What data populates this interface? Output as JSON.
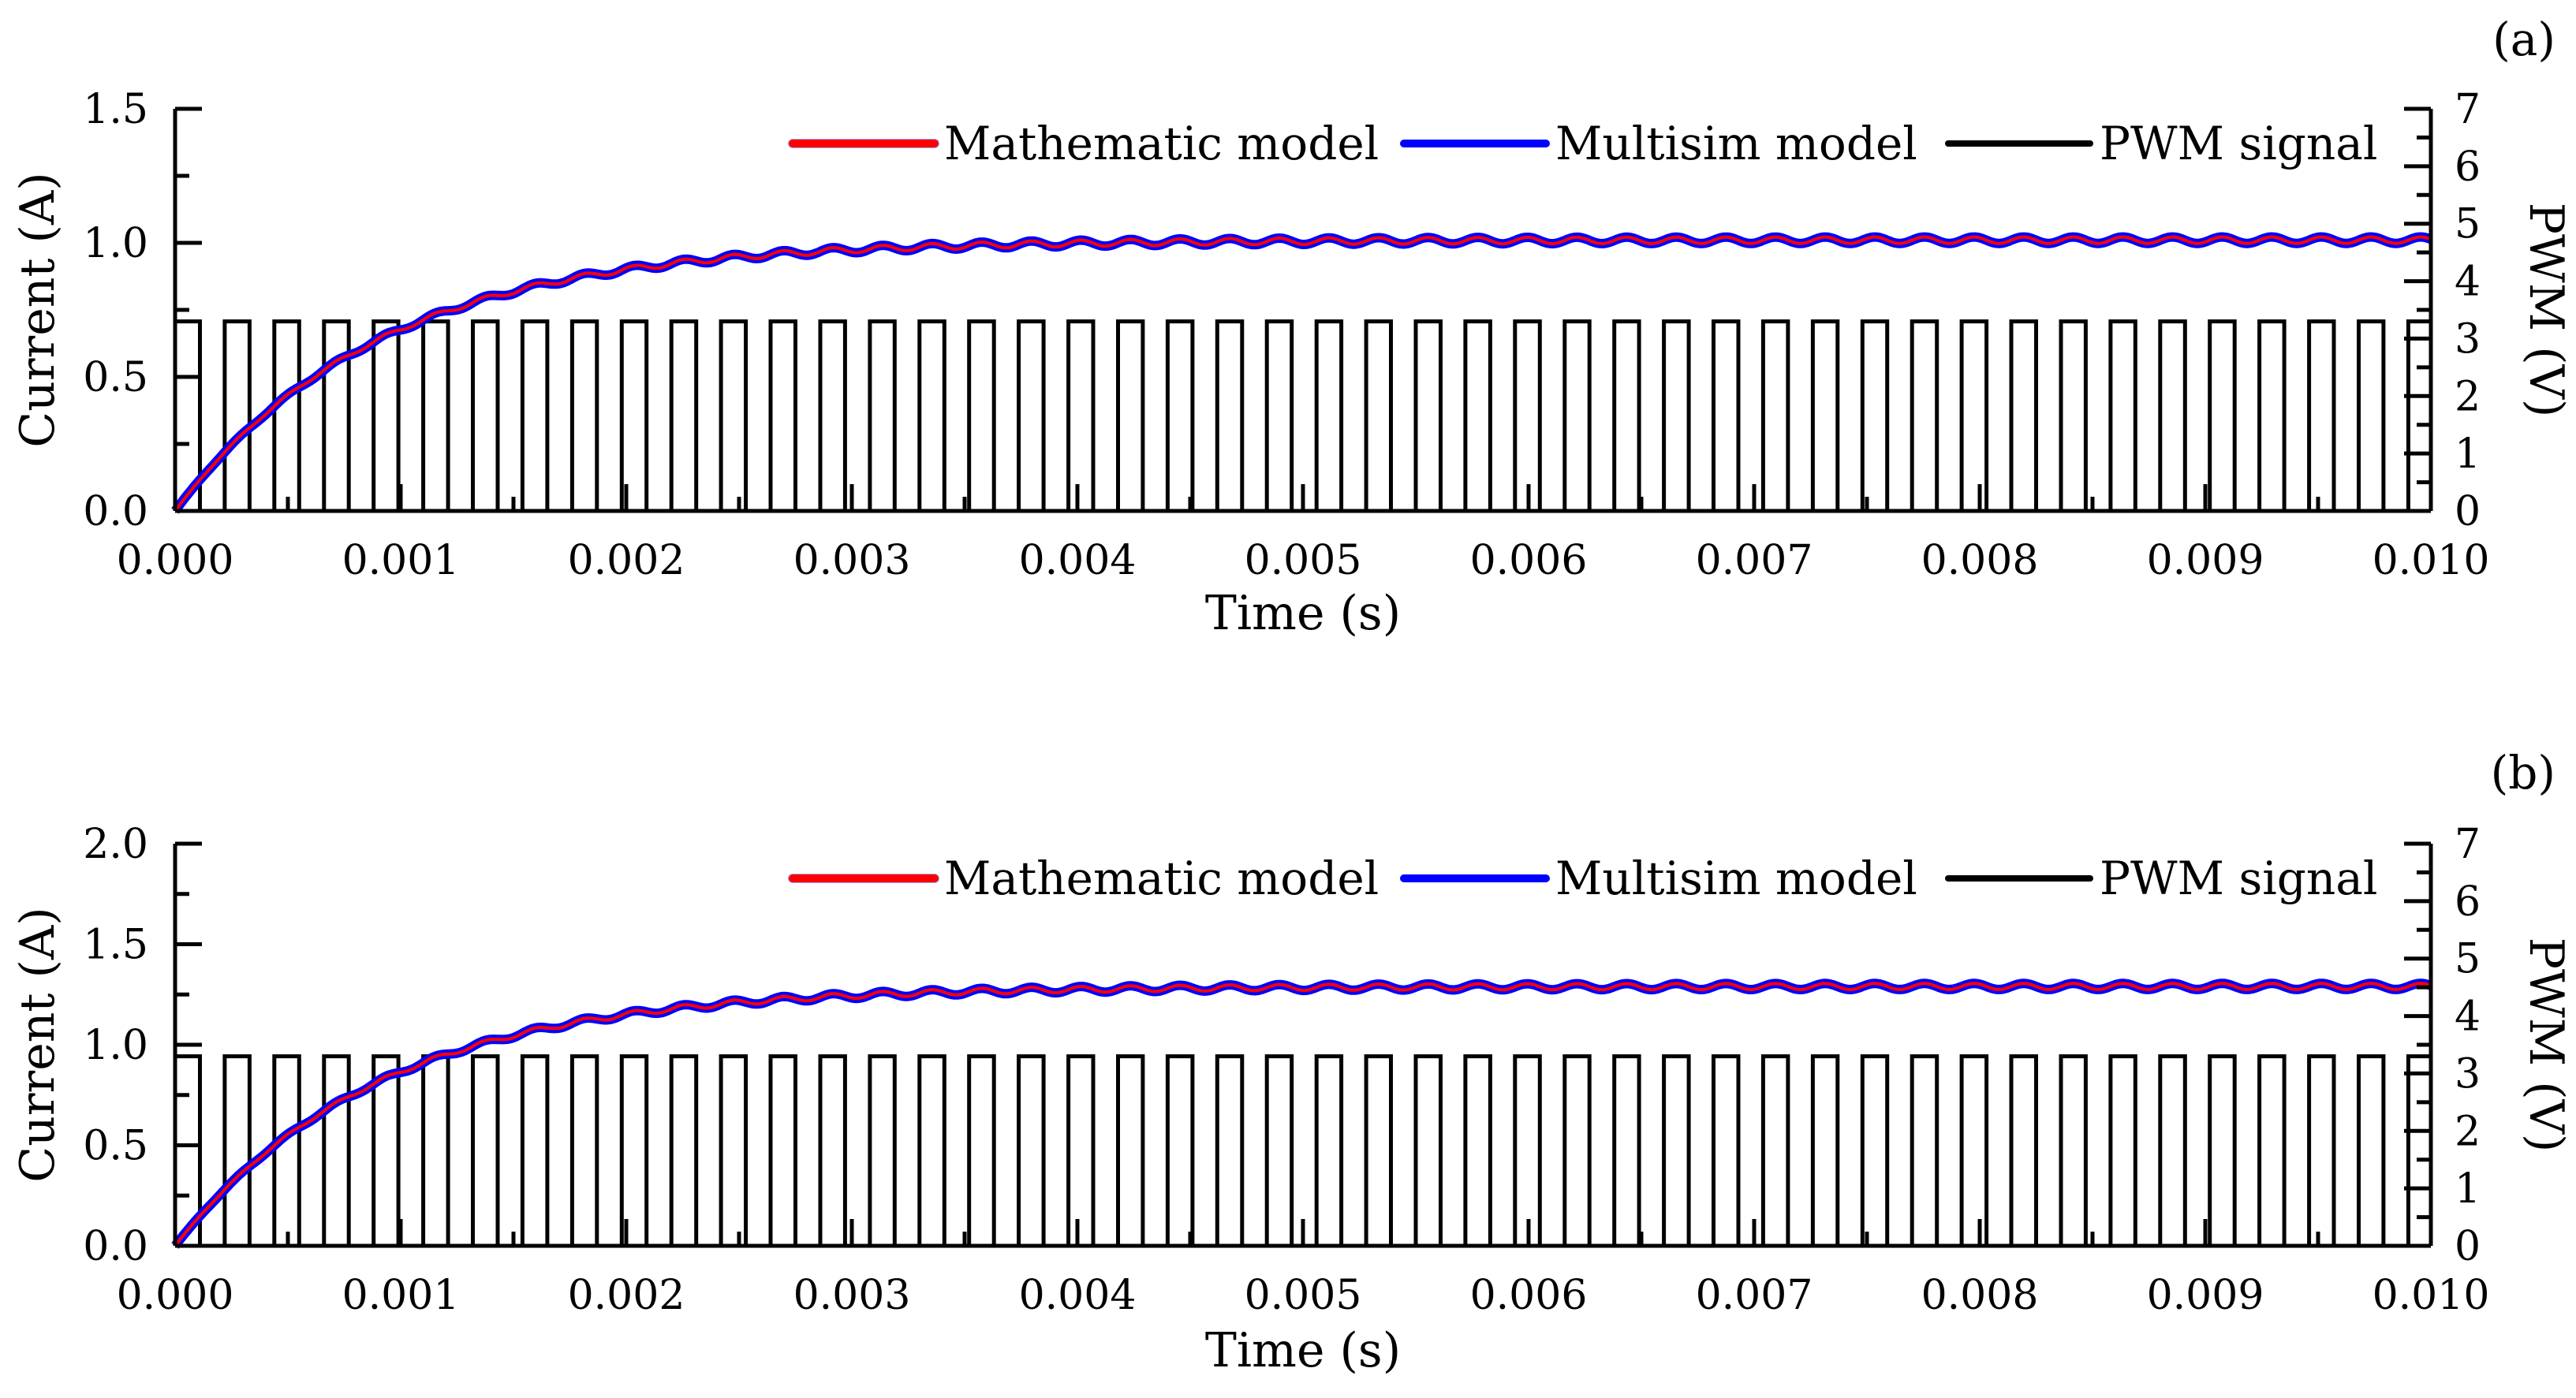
{
  "chart_data": [
    {
      "panel_label": "(a)",
      "type": "line",
      "xlabel": "Time (s)",
      "ylabel_left": "Current (A)",
      "ylabel_right": "PWM (V)",
      "xlim": [
        0.0,
        0.01
      ],
      "ylim_left": [
        0.0,
        1.5
      ],
      "ylim_right": [
        0,
        7
      ],
      "x_ticks": [
        "0.000",
        "0.001",
        "0.002",
        "0.003",
        "0.004",
        "0.005",
        "0.006",
        "0.007",
        "0.008",
        "0.009",
        "0.010"
      ],
      "y_ticks_left": [
        "0.0",
        "0.5",
        "1.0",
        "1.5"
      ],
      "y_ticks_right": [
        "0",
        "1",
        "2",
        "3",
        "4",
        "5",
        "6",
        "7"
      ],
      "legend": [
        "Mathematic model",
        "Multisim model",
        "PWM signal"
      ],
      "series": [
        {
          "name": "Mathematic model",
          "color": "#ff0000",
          "steady_state_A": 1.01,
          "rise_time_constant_s": 0.0009,
          "ripple_A": 0.012,
          "ripple_period_s": 0.00022
        },
        {
          "name": "Multisim model",
          "color": "#0000ff",
          "steady_state_A": 1.01,
          "rise_time_constant_s": 0.0009,
          "ripple_A": 0.012,
          "ripple_period_s": 0.00022
        },
        {
          "name": "PWM signal",
          "color": "#000000",
          "high_V": 3.3,
          "low_V": 0,
          "period_s": 0.00022,
          "duty_cycle": 0.5
        }
      ]
    },
    {
      "panel_label": "(b)",
      "type": "line",
      "xlabel": "Time (s)",
      "ylabel_left": "Current (A)",
      "ylabel_right": "PWM (V)",
      "xlim": [
        0.0,
        0.01
      ],
      "ylim_left": [
        0.0,
        2.0
      ],
      "ylim_right": [
        0,
        7
      ],
      "x_ticks": [
        "0.000",
        "0.001",
        "0.002",
        "0.003",
        "0.004",
        "0.005",
        "0.006",
        "0.007",
        "0.008",
        "0.009",
        "0.010"
      ],
      "y_ticks_left": [
        "0.0",
        "0.5",
        "1.0",
        "1.5",
        "2.0"
      ],
      "y_ticks_right": [
        "0",
        "1",
        "2",
        "3",
        "4",
        "5",
        "6",
        "7"
      ],
      "legend": [
        "Mathematic model",
        "Multisim model",
        "PWM signal"
      ],
      "series": [
        {
          "name": "Mathematic model",
          "color": "#ff0000",
          "steady_state_A": 1.29,
          "rise_time_constant_s": 0.0009,
          "ripple_A": 0.015,
          "ripple_period_s": 0.00022
        },
        {
          "name": "Multisim model",
          "color": "#0000ff",
          "steady_state_A": 1.29,
          "rise_time_constant_s": 0.0009,
          "ripple_A": 0.015,
          "ripple_period_s": 0.00022
        },
        {
          "name": "PWM signal",
          "color": "#000000",
          "high_V": 3.3,
          "low_V": 0,
          "period_s": 0.00022,
          "duty_cycle": 0.5
        }
      ]
    }
  ]
}
